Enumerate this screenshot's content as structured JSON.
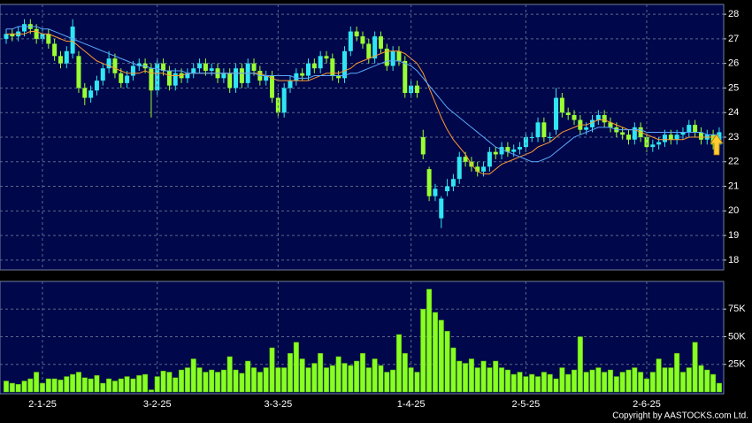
{
  "chart_data": [
    {
      "type": "candlestick",
      "up_color": "#2fe6f2",
      "down_color": "#99ff33",
      "ylim": [
        17.6,
        28.4
      ],
      "yticks": [
        18,
        19,
        20,
        21,
        22,
        23,
        24,
        25,
        26,
        27,
        28
      ],
      "grid": true,
      "open": [
        27.0,
        27.2,
        27.1,
        27.3,
        27.6,
        27.4,
        27.0,
        27.2,
        26.8,
        26.3,
        26.0,
        26.4,
        26.3,
        25.0,
        24.6,
        24.9,
        25.3,
        25.8,
        26.2,
        25.6,
        25.2,
        25.5,
        25.9,
        26.0,
        25.8,
        24.9,
        26.0,
        25.7,
        25.1,
        25.6,
        25.4,
        25.6,
        25.8,
        26.0,
        25.7,
        25.8,
        25.4,
        25.6,
        25.0,
        25.8,
        25.2,
        26.0,
        25.7,
        25.3,
        25.5,
        24.6,
        24.0,
        25.0,
        25.3,
        25.6,
        25.5,
        26.0,
        25.8,
        26.3,
        26.2,
        25.5,
        25.4,
        26.5,
        27.3,
        27.1,
        26.8,
        26.2,
        27.1,
        26.6,
        25.9,
        26.5,
        26.1,
        24.8,
        25.1,
        23.0,
        21.7,
        20.6,
        19.7,
        20.8,
        21.0,
        21.3,
        22.2,
        22.0,
        21.8,
        21.6,
        21.8,
        22.4,
        22.3,
        22.6,
        22.4,
        22.5,
        22.6,
        23.0,
        23.0,
        23.6,
        23.0,
        23.3,
        24.6,
        24.0,
        23.9,
        23.7,
        23.3,
        23.4,
        23.7,
        23.9,
        23.6,
        23.4,
        23.2,
        23.1,
        22.9,
        23.4,
        23.0,
        22.6,
        22.7,
        22.8,
        23.1,
        22.9,
        23.1,
        23.2,
        23.5,
        23.2,
        22.9,
        23.1,
        22.7
      ],
      "high": [
        27.4,
        27.4,
        27.5,
        27.8,
        27.8,
        27.6,
        27.4,
        27.4,
        27.0,
        26.5,
        26.7,
        27.8,
        26.5,
        25.2,
        25.1,
        25.5,
        26.0,
        26.5,
        26.4,
        25.8,
        25.7,
        26.1,
        26.2,
        26.2,
        26.0,
        26.2,
        26.2,
        25.9,
        25.8,
        25.8,
        25.8,
        26.0,
        26.2,
        26.2,
        26.0,
        26.0,
        25.8,
        25.8,
        26.0,
        26.0,
        26.2,
        26.2,
        25.9,
        25.7,
        25.7,
        24.8,
        25.2,
        25.5,
        25.8,
        25.8,
        26.2,
        26.2,
        26.5,
        26.5,
        26.4,
        25.7,
        26.7,
        27.5,
        27.5,
        27.3,
        27.0,
        27.3,
        27.3,
        26.8,
        26.7,
        26.7,
        26.3,
        25.3,
        25.3,
        23.3,
        21.8,
        21.1,
        20.6,
        21.3,
        21.5,
        22.4,
        22.4,
        22.2,
        22.0,
        22.0,
        22.6,
        22.6,
        22.8,
        22.8,
        22.7,
        22.8,
        23.2,
        23.2,
        23.8,
        23.8,
        23.2,
        25.0,
        24.8,
        24.2,
        24.1,
        23.9,
        23.6,
        23.9,
        24.1,
        24.1,
        23.8,
        23.6,
        23.4,
        23.3,
        23.6,
        23.6,
        23.2,
        22.9,
        23.0,
        23.3,
        23.3,
        23.3,
        23.4,
        23.7,
        23.7,
        23.4,
        23.3,
        23.3,
        23.4
      ],
      "low": [
        26.8,
        26.9,
        26.9,
        27.1,
        27.2,
        26.8,
        26.8,
        26.6,
        26.1,
        25.8,
        25.8,
        26.2,
        24.8,
        24.3,
        24.4,
        24.7,
        25.1,
        25.6,
        25.4,
        25.0,
        25.0,
        25.3,
        25.7,
        25.6,
        23.8,
        24.7,
        25.5,
        24.9,
        24.9,
        25.2,
        25.2,
        25.4,
        25.6,
        25.5,
        25.5,
        25.2,
        25.2,
        24.8,
        24.8,
        25.0,
        25.0,
        25.5,
        25.1,
        25.1,
        24.4,
        23.8,
        23.8,
        24.8,
        25.1,
        25.3,
        25.3,
        25.6,
        25.6,
        26.0,
        25.3,
        25.2,
        25.2,
        26.3,
        26.9,
        26.6,
        26.0,
        26.0,
        26.4,
        25.7,
        25.7,
        25.9,
        24.6,
        24.6,
        24.6,
        22.1,
        20.4,
        20.4,
        19.3,
        20.6,
        20.8,
        21.1,
        21.8,
        21.6,
        21.4,
        21.4,
        21.6,
        22.1,
        22.1,
        22.2,
        22.2,
        22.3,
        22.4,
        22.8,
        22.8,
        22.8,
        22.8,
        23.1,
        23.8,
        23.7,
        23.5,
        23.1,
        23.1,
        23.2,
        23.5,
        23.4,
        23.2,
        23.0,
        22.9,
        22.7,
        22.7,
        22.8,
        22.4,
        22.4,
        22.5,
        22.6,
        22.7,
        22.7,
        22.9,
        23.0,
        23.0,
        22.7,
        22.7,
        22.5,
        22.5
      ],
      "close": [
        27.2,
        27.1,
        27.3,
        27.6,
        27.4,
        27.0,
        27.2,
        26.8,
        26.3,
        26.0,
        26.5,
        27.5,
        25.0,
        24.6,
        24.9,
        25.3,
        25.8,
        26.2,
        25.6,
        25.2,
        25.5,
        25.9,
        26.0,
        25.8,
        24.9,
        26.0,
        25.7,
        25.1,
        25.6,
        25.4,
        25.6,
        25.8,
        26.0,
        25.7,
        25.8,
        25.4,
        25.6,
        25.0,
        25.8,
        25.2,
        26.0,
        25.7,
        25.3,
        25.5,
        24.6,
        24.0,
        25.0,
        25.3,
        25.6,
        25.5,
        26.0,
        25.8,
        26.3,
        26.2,
        25.5,
        25.4,
        26.5,
        27.3,
        27.1,
        26.8,
        26.2,
        27.1,
        26.6,
        25.9,
        26.5,
        26.1,
        24.8,
        25.1,
        24.8,
        22.3,
        20.6,
        20.9,
        20.5,
        21.0,
        21.3,
        22.2,
        22.0,
        21.8,
        21.6,
        21.8,
        22.4,
        22.3,
        22.6,
        22.4,
        22.5,
        22.6,
        23.0,
        23.0,
        23.6,
        23.0,
        23.0,
        24.6,
        24.0,
        23.9,
        23.7,
        23.3,
        23.4,
        23.7,
        23.9,
        23.6,
        23.4,
        23.2,
        23.1,
        22.9,
        23.4,
        23.0,
        22.6,
        22.7,
        22.8,
        23.1,
        22.9,
        23.1,
        23.2,
        23.5,
        23.2,
        22.9,
        23.1,
        22.7,
        23.2
      ],
      "series": [
        {
          "color": "#ff9933",
          "values": [
            27.2,
            27.2,
            27.2,
            27.2,
            27.3,
            27.3,
            27.2,
            27.2,
            27.1,
            27.0,
            26.9,
            26.9,
            26.7,
            26.5,
            26.3,
            26.1,
            26.0,
            25.9,
            25.8,
            25.7,
            25.6,
            25.6,
            25.6,
            25.7,
            25.6,
            25.6,
            25.6,
            25.5,
            25.5,
            25.5,
            25.6,
            25.6,
            25.6,
            25.6,
            25.6,
            25.6,
            25.6,
            25.6,
            25.6,
            25.6,
            25.6,
            25.6,
            25.6,
            25.5,
            25.4,
            25.3,
            25.3,
            25.3,
            25.3,
            25.3,
            25.3,
            25.4,
            25.5,
            25.6,
            25.6,
            25.6,
            25.7,
            25.8,
            26.0,
            26.1,
            26.2,
            26.3,
            26.4,
            26.5,
            26.5,
            26.5,
            26.4,
            26.2,
            26.0,
            25.6,
            25.0,
            24.4,
            23.8,
            23.3,
            22.9,
            22.6,
            22.3,
            21.9,
            21.6,
            21.5,
            21.5,
            21.7,
            21.9,
            22.0,
            22.1,
            22.2,
            22.3,
            22.4,
            22.6,
            22.7,
            22.8,
            23.0,
            23.2,
            23.3,
            23.4,
            23.5,
            23.5,
            23.6,
            23.7,
            23.7,
            23.6,
            23.5,
            23.4,
            23.3,
            23.3,
            23.2,
            23.1,
            23.0,
            22.9,
            22.9,
            22.9,
            22.9,
            22.9,
            23.0,
            23.0,
            23.0,
            23.0,
            23.0,
            23.1
          ]
        },
        {
          "color": "#5aa8ff",
          "values": [
            27.4,
            27.4,
            27.5,
            27.5,
            27.5,
            27.5,
            27.4,
            27.4,
            27.3,
            27.2,
            27.1,
            27.0,
            26.9,
            26.8,
            26.7,
            26.6,
            26.5,
            26.4,
            26.3,
            26.2,
            26.1,
            26.0,
            25.9,
            25.9,
            25.8,
            25.8,
            25.7,
            25.7,
            25.7,
            25.7,
            25.6,
            25.6,
            25.6,
            25.6,
            25.6,
            25.6,
            25.6,
            25.6,
            25.6,
            25.6,
            25.6,
            25.6,
            25.5,
            25.5,
            25.5,
            25.5,
            25.5,
            25.5,
            25.4,
            25.4,
            25.4,
            25.5,
            25.5,
            25.5,
            25.5,
            25.5,
            25.5,
            25.6,
            25.6,
            25.7,
            25.8,
            25.9,
            26.0,
            26.1,
            26.1,
            26.1,
            26.0,
            25.9,
            25.7,
            25.4,
            25.1,
            24.8,
            24.5,
            24.2,
            24.0,
            23.8,
            23.6,
            23.4,
            23.2,
            23.0,
            22.8,
            22.6,
            22.5,
            22.4,
            22.3,
            22.2,
            22.1,
            22.0,
            22.0,
            22.1,
            22.2,
            22.4,
            22.6,
            22.8,
            23.0,
            23.1,
            23.2,
            23.3,
            23.4,
            23.4,
            23.4,
            23.3,
            23.3,
            23.3,
            23.3,
            23.3,
            23.2,
            23.2,
            23.2,
            23.2,
            23.2,
            23.2,
            23.2,
            23.2,
            23.2,
            23.2,
            23.1,
            23.1,
            23.1
          ]
        }
      ]
    },
    {
      "type": "bar",
      "color": "#88ff22",
      "categories": [
        null,
        null,
        null,
        null,
        null,
        null,
        "2-1-25",
        null,
        null,
        null,
        null,
        null,
        null,
        null,
        null,
        null,
        null,
        null,
        null,
        null,
        null,
        null,
        null,
        null,
        null,
        "3-2-25",
        null,
        null,
        null,
        null,
        null,
        null,
        null,
        null,
        null,
        null,
        null,
        null,
        null,
        null,
        null,
        null,
        null,
        null,
        null,
        "3-3-25",
        null,
        null,
        null,
        null,
        null,
        null,
        null,
        null,
        null,
        null,
        null,
        null,
        null,
        null,
        null,
        null,
        null,
        null,
        null,
        null,
        null,
        "1-4-25",
        null,
        null,
        null,
        null,
        null,
        null,
        null,
        null,
        null,
        null,
        null,
        null,
        null,
        null,
        null,
        null,
        null,
        null,
        "2-5-25",
        null,
        null,
        null,
        null,
        null,
        null,
        null,
        null,
        null,
        null,
        null,
        null,
        null,
        null,
        null,
        null,
        null,
        null,
        null,
        "2-6-25",
        null,
        null,
        null,
        null,
        null,
        null,
        null,
        null,
        null,
        null,
        null,
        null
      ],
      "values": [
        10000,
        8000,
        7000,
        10000,
        12000,
        18000,
        8000,
        12000,
        12000,
        11000,
        14000,
        16000,
        18000,
        13000,
        12000,
        15000,
        8000,
        12000,
        10000,
        12000,
        14000,
        12000,
        15000,
        16000,
        2000,
        14000,
        19000,
        18000,
        13000,
        20000,
        22000,
        30000,
        22000,
        18000,
        20000,
        18000,
        20000,
        32000,
        20000,
        17000,
        28000,
        22000,
        18000,
        22000,
        40000,
        22000,
        22000,
        35000,
        45000,
        30000,
        22000,
        26000,
        35000,
        22000,
        24000,
        32000,
        26000,
        24000,
        28000,
        35000,
        22000,
        30000,
        24000,
        18000,
        20000,
        52000,
        35000,
        22000,
        18000,
        75000,
        93000,
        72000,
        65000,
        55000,
        40000,
        28000,
        26000,
        30000,
        22000,
        28000,
        22000,
        28000,
        22000,
        20000,
        16000,
        18000,
        14000,
        16000,
        14000,
        18000,
        16000,
        12000,
        22000,
        16000,
        20000,
        50000,
        18000,
        20000,
        22000,
        18000,
        20000,
        14000,
        18000,
        20000,
        22000,
        18000,
        12000,
        18000,
        30000,
        22000,
        22000,
        35000,
        18000,
        22000,
        45000,
        24000,
        20000,
        16000,
        8000
      ],
      "ylim": [
        0,
        100000
      ],
      "yticks": [
        {
          "value": 25000,
          "label": "25K"
        },
        {
          "value": 50000,
          "label": "50K"
        },
        {
          "value": 75000,
          "label": "75K"
        }
      ],
      "grid": true
    }
  ],
  "copyright": "Copyright by AASTOCKS.com Ltd."
}
